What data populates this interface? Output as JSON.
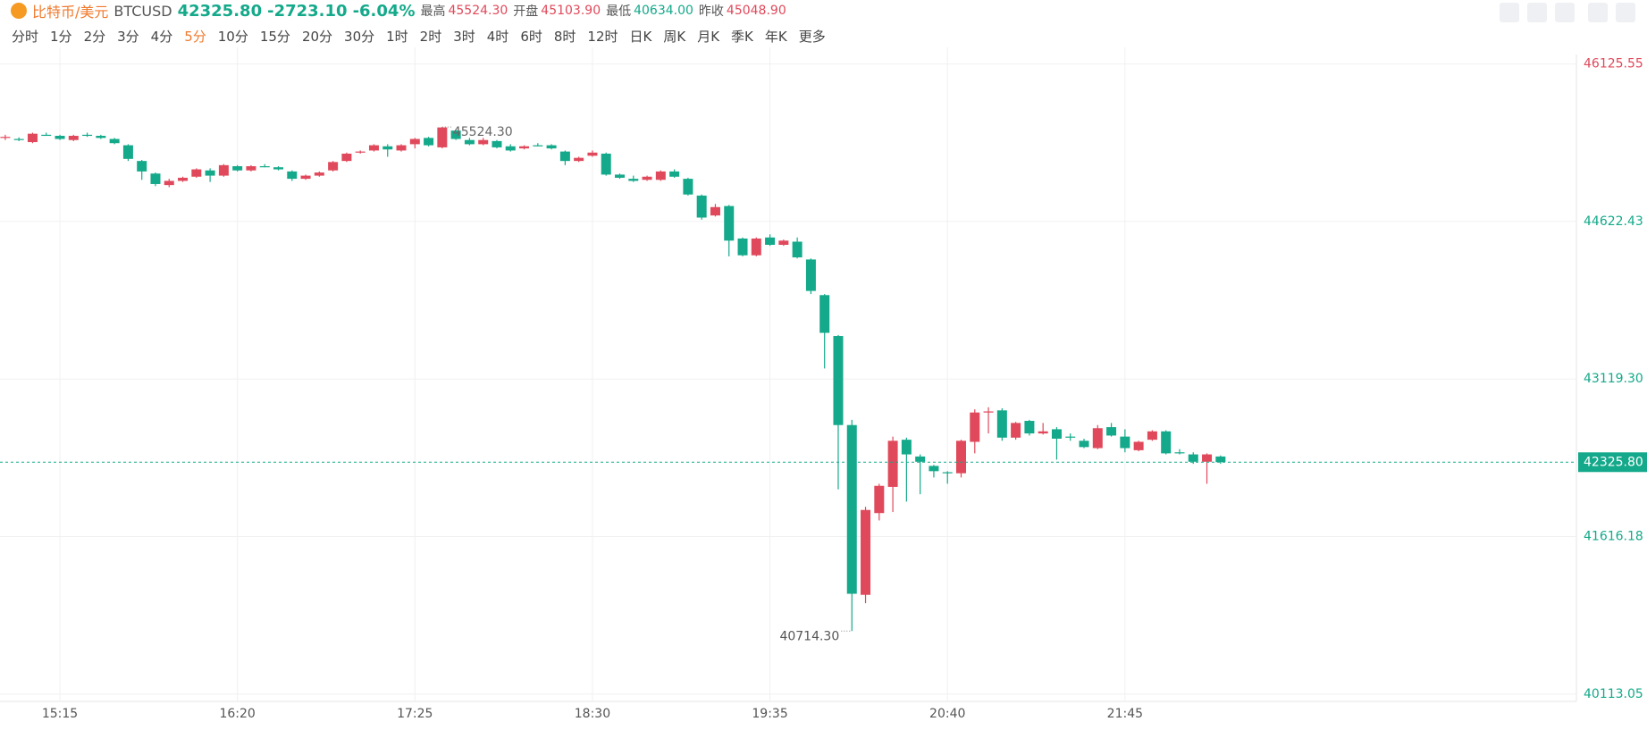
{
  "header": {
    "name": "比特币/美元",
    "symbol": "BTCUSD",
    "price": "42325.80",
    "change": "-2723.10",
    "change_pct": "-6.04%",
    "stats": [
      {
        "label": "最高",
        "value": "45524.30"
      },
      {
        "label": "开盘",
        "value": "45103.90"
      },
      {
        "label": "最低",
        "value": "40634.00"
      },
      {
        "label": "昨收",
        "value": "45048.90"
      }
    ]
  },
  "periods": [
    "分时",
    "1分",
    "2分",
    "3分",
    "4分",
    "5分",
    "10分",
    "15分",
    "20分",
    "30分",
    "1时",
    "2时",
    "3时",
    "4时",
    "6时",
    "8时",
    "12时",
    "日K",
    "周K",
    "月K",
    "季K",
    "年K",
    "更多"
  ],
  "chart_data": {
    "type": "candlestick",
    "up_color": "#e0495b",
    "down_color": "#14a98a",
    "categories": [
      null,
      null,
      null,
      null,
      "15:15",
      null,
      null,
      null,
      null,
      null,
      null,
      null,
      null,
      null,
      null,
      null,
      null,
      "16:20",
      null,
      null,
      null,
      null,
      null,
      null,
      null,
      null,
      null,
      null,
      null,
      null,
      "17:25",
      null,
      null,
      null,
      null,
      null,
      null,
      null,
      null,
      null,
      null,
      null,
      null,
      "18:30",
      null,
      null,
      null,
      null,
      null,
      null,
      null,
      null,
      null,
      null,
      null,
      null,
      "19:35",
      null,
      null,
      null,
      null,
      null,
      null,
      null,
      null,
      null,
      null,
      null,
      null,
      "20:40",
      null,
      null,
      null,
      null,
      null,
      null,
      null,
      null,
      null,
      null,
      null,
      null,
      "21:45",
      null,
      null,
      null,
      null,
      null,
      null,
      null
    ],
    "open": [
      45420,
      45410,
      45380,
      45450,
      45440,
      45400,
      45450,
      45440,
      45410,
      45350,
      45200,
      45080,
      44970,
      45010,
      45050,
      45110,
      45060,
      45150,
      45110,
      45150,
      45140,
      45100,
      45030,
      45060,
      45110,
      45200,
      45280,
      45300,
      45340,
      45300,
      45360,
      45420,
      45330,
      45490,
      45400,
      45360,
      45390,
      45340,
      45320,
      45350,
      45350,
      45290,
      45200,
      45250,
      45270,
      45070,
      45030,
      45020,
      45020,
      45100,
      45030,
      44870,
      44680,
      44770,
      44460,
      44300,
      44470,
      44400,
      44430,
      44260,
      43920,
      43530,
      42680,
      41060,
      41840,
      42090,
      42540,
      42380,
      42290,
      42230,
      42220,
      42520,
      42800,
      42820,
      42560,
      42720,
      42600,
      42640,
      42570,
      42530,
      42460,
      42660,
      42570,
      42440,
      42540,
      42620,
      42420,
      42400,
      42330,
      42380
    ],
    "high": [
      45450,
      45425,
      45470,
      45470,
      45450,
      45450,
      45470,
      45450,
      45420,
      45360,
      45210,
      45090,
      45030,
      45050,
      45130,
      45130,
      45170,
      45160,
      45160,
      45170,
      45150,
      45110,
      45070,
      45100,
      45200,
      45280,
      45300,
      45360,
      45360,
      45360,
      45420,
      45430,
      45524.3,
      45500,
      45420,
      45420,
      45400,
      45360,
      45350,
      45370,
      45360,
      45300,
      45240,
      45300,
      45280,
      45080,
      45060,
      45060,
      45110,
      45120,
      45040,
      44880,
      44790,
      44780,
      44470,
      44470,
      44500,
      44450,
      44470,
      44270,
      43930,
      43540,
      42730,
      41900,
      42120,
      42570,
      42560,
      42400,
      42300,
      42240,
      42540,
      42830,
      42850,
      42840,
      42710,
      42730,
      42700,
      42660,
      42600,
      42550,
      42680,
      42700,
      42640,
      42530,
      42630,
      42630,
      42450,
      42420,
      42410,
      42390
    ],
    "low": [
      45400,
      45390,
      45370,
      45440,
      45400,
      45390,
      45430,
      45410,
      45360,
      45200,
      45020,
      44960,
      44950,
      45000,
      45040,
      45000,
      45050,
      45100,
      45100,
      45140,
      45110,
      45010,
      45020,
      45050,
      45100,
      45190,
      45270,
      45290,
      45240,
      45290,
      45320,
      45340,
      45320,
      45400,
      45350,
      45350,
      45320,
      45290,
      45310,
      45340,
      45310,
      45160,
      45190,
      45240,
      45060,
      45030,
      45000,
      45010,
      45010,
      45040,
      44870,
      44640,
      44670,
      44290,
      44290,
      44290,
      44390,
      44390,
      44270,
      43930,
      43220,
      42067,
      40714.3,
      40980,
      41770,
      41850,
      41950,
      42020,
      42180,
      42120,
      42180,
      42410,
      42600,
      42530,
      42540,
      42580,
      42590,
      42350,
      42530,
      42460,
      42450,
      42570,
      42420,
      42430,
      42530,
      42400,
      42400,
      42310,
      42120,
      42310
    ],
    "close": [
      45430,
      45400,
      45460,
      45450,
      45410,
      45440,
      45440,
      45420,
      45370,
      45220,
      45100,
      44980,
      45010,
      45040,
      45120,
      45060,
      45160,
      45110,
      45150,
      45150,
      45120,
      45030,
      45060,
      45090,
      45190,
      45270,
      45290,
      45350,
      45310,
      45350,
      45410,
      45350,
      45520,
      45410,
      45360,
      45400,
      45330,
      45300,
      45340,
      45350,
      45320,
      45200,
      45230,
      45280,
      45070,
      45040,
      45010,
      45050,
      45100,
      45050,
      44880,
      44660,
      44760,
      44440,
      44300,
      44460,
      44400,
      44440,
      44280,
      43960,
      43560,
      42680,
      41070,
      41870,
      42100,
      42530,
      42400,
      42330,
      42240,
      42220,
      42530,
      42800,
      42810,
      42560,
      42700,
      42600,
      42620,
      42550,
      42570,
      42470,
      42650,
      42580,
      42460,
      42520,
      42620,
      42410,
      42420,
      42330,
      42400,
      42325.8
    ],
    "ylim": [
      40043,
      46216
    ],
    "yticks": [
      46125.55,
      44622.43,
      {
        "value": 43119.3,
        "label": "43119.30"
      },
      41616.18,
      40113.05
    ],
    "grid": true,
    "last_price": {
      "value": 42325.8,
      "label": "42325.80"
    },
    "high_label": {
      "value": 45524.3,
      "label": "45524.30"
    },
    "low_label": {
      "value": 40714.3,
      "label": "40714.30"
    }
  }
}
